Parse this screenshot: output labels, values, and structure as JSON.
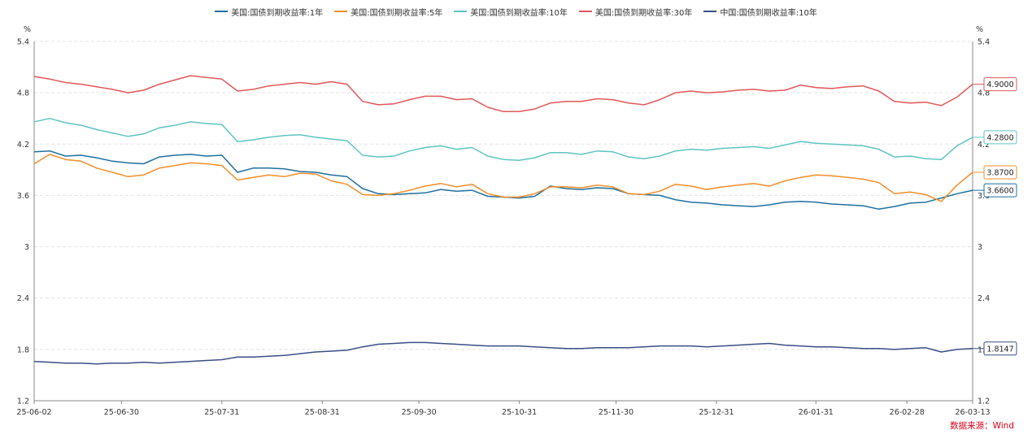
{
  "legend": [
    {
      "label": "美国:国债到期收益率:1年",
      "color": "#1f6f9f"
    },
    {
      "label": "美国:国债到期收益率:5年",
      "color": "#f28e2b"
    },
    {
      "label": "美国:国债到期收益率:10年",
      "color": "#5ec4c2"
    },
    {
      "label": "美国:国债到期收益率:30年",
      "color": "#e15759"
    },
    {
      "label": "中国:国债到期收益率:10年",
      "color": "#3b4e86"
    }
  ],
  "source": "数据来源：Wind",
  "chart_data": {
    "type": "line",
    "y_unit_left": "%",
    "y_unit_right": "%",
    "ylim": [
      1.2,
      5.4
    ],
    "y_ticks": [
      "5.4",
      "4.8",
      "4.2",
      "3.6",
      "3",
      "2.4",
      "1.8",
      "1.2"
    ],
    "x_ticks": [
      "25-06-02",
      "25-06-30",
      "25-07-31",
      "25-08-31",
      "25-09-30",
      "25-10-31",
      "25-11-30",
      "25-12-31",
      "26-01-31",
      "26-02-28",
      "26-03-13"
    ],
    "grid": true,
    "legend_position": "top",
    "series": [
      {
        "name": "美国:国债到期收益率:1年",
        "color": "#1f6f9f",
        "end_label": "3.6600",
        "values": [
          4.11,
          4.12,
          4.06,
          4.07,
          4.04,
          4.0,
          3.98,
          3.97,
          4.05,
          4.07,
          4.08,
          4.06,
          4.07,
          3.87,
          3.92,
          3.92,
          3.91,
          3.88,
          3.87,
          3.84,
          3.82,
          3.68,
          3.62,
          3.61,
          3.62,
          3.63,
          3.67,
          3.65,
          3.66,
          3.59,
          3.58,
          3.57,
          3.59,
          3.71,
          3.68,
          3.67,
          3.69,
          3.68,
          3.62,
          3.61,
          3.6,
          3.55,
          3.52,
          3.51,
          3.49,
          3.48,
          3.47,
          3.49,
          3.52,
          3.53,
          3.52,
          3.5,
          3.49,
          3.48,
          3.44,
          3.47,
          3.51,
          3.52,
          3.57,
          3.62,
          3.66
        ]
      },
      {
        "name": "美国:国债到期收益率:5年",
        "color": "#f28e2b",
        "end_label": "3.8700",
        "values": [
          3.97,
          4.08,
          4.02,
          4.0,
          3.92,
          3.87,
          3.82,
          3.84,
          3.92,
          3.95,
          3.98,
          3.97,
          3.95,
          3.78,
          3.81,
          3.84,
          3.82,
          3.86,
          3.85,
          3.77,
          3.73,
          3.61,
          3.6,
          3.62,
          3.66,
          3.71,
          3.74,
          3.7,
          3.73,
          3.62,
          3.58,
          3.58,
          3.62,
          3.7,
          3.7,
          3.69,
          3.72,
          3.7,
          3.62,
          3.61,
          3.65,
          3.73,
          3.71,
          3.67,
          3.7,
          3.72,
          3.74,
          3.71,
          3.77,
          3.81,
          3.84,
          3.83,
          3.81,
          3.79,
          3.75,
          3.62,
          3.64,
          3.61,
          3.53,
          3.72,
          3.87
        ]
      },
      {
        "name": "美国:国债到期收益率:10年",
        "color": "#5ec4c2",
        "end_label": "4.2800",
        "values": [
          4.46,
          4.5,
          4.45,
          4.42,
          4.37,
          4.33,
          4.29,
          4.32,
          4.39,
          4.42,
          4.46,
          4.44,
          4.43,
          4.23,
          4.25,
          4.28,
          4.3,
          4.31,
          4.28,
          4.26,
          4.24,
          4.07,
          4.05,
          4.06,
          4.12,
          4.16,
          4.18,
          4.14,
          4.16,
          4.06,
          4.02,
          4.01,
          4.04,
          4.1,
          4.1,
          4.08,
          4.12,
          4.11,
          4.05,
          4.03,
          4.06,
          4.12,
          4.14,
          4.13,
          4.15,
          4.16,
          4.17,
          4.15,
          4.19,
          4.23,
          4.21,
          4.2,
          4.19,
          4.18,
          4.14,
          4.05,
          4.06,
          4.03,
          4.02,
          4.18,
          4.28
        ]
      },
      {
        "name": "美国:国债到期收益率:30年",
        "color": "#e15759",
        "end_label": "4.9000",
        "values": [
          4.99,
          4.96,
          4.92,
          4.9,
          4.87,
          4.84,
          4.8,
          4.83,
          4.9,
          4.95,
          5.0,
          4.98,
          4.96,
          4.82,
          4.84,
          4.88,
          4.9,
          4.92,
          4.9,
          4.93,
          4.9,
          4.7,
          4.66,
          4.67,
          4.72,
          4.76,
          4.76,
          4.72,
          4.73,
          4.63,
          4.58,
          4.58,
          4.61,
          4.68,
          4.7,
          4.7,
          4.73,
          4.72,
          4.68,
          4.66,
          4.72,
          4.8,
          4.82,
          4.8,
          4.81,
          4.83,
          4.84,
          4.82,
          4.83,
          4.89,
          4.86,
          4.85,
          4.87,
          4.88,
          4.82,
          4.7,
          4.68,
          4.69,
          4.65,
          4.75,
          4.9
        ]
      },
      {
        "name": "中国:国债到期收益率:10年",
        "color": "#3b4e86",
        "end_label": "1.8147",
        "values": [
          1.66,
          1.65,
          1.64,
          1.64,
          1.63,
          1.64,
          1.64,
          1.65,
          1.64,
          1.65,
          1.66,
          1.67,
          1.68,
          1.71,
          1.71,
          1.72,
          1.73,
          1.75,
          1.77,
          1.78,
          1.79,
          1.83,
          1.86,
          1.87,
          1.88,
          1.88,
          1.87,
          1.86,
          1.85,
          1.84,
          1.84,
          1.84,
          1.83,
          1.82,
          1.81,
          1.81,
          1.82,
          1.82,
          1.82,
          1.83,
          1.84,
          1.84,
          1.84,
          1.83,
          1.84,
          1.85,
          1.86,
          1.87,
          1.85,
          1.84,
          1.83,
          1.83,
          1.82,
          1.81,
          1.81,
          1.8,
          1.81,
          1.82,
          1.77,
          1.8,
          1.81
        ]
      }
    ]
  }
}
